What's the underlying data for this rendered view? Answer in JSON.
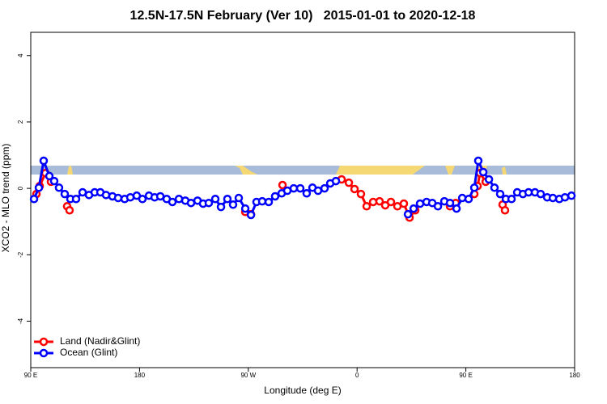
{
  "chart_data": {
    "type": "line",
    "title": "12.5N-17.5N February (Ver 10)   2015-01-01 to 2020-12-18",
    "x_label": "Longitude (deg E)",
    "y_label": "XCO2 - MLO trend (ppm)",
    "xlim": [
      90,
      540
    ],
    "xticks": [
      {
        "value": 90,
        "label": "90 E"
      },
      180,
      {
        "value": 270,
        "label": "90 W"
      },
      {
        "value": 360,
        "label": "0"
      },
      {
        "value": 450,
        "label": "90 E"
      },
      {
        "value": 540,
        "label": "180"
      }
    ],
    "ylim": [
      -5.4,
      4.7
    ],
    "yticks": [
      -4,
      -2,
      0,
      2,
      4
    ],
    "legend_position": "bottom-left",
    "series": [
      {
        "name": "Land (Nadir&Glint)",
        "color": "#ff0000",
        "x": [
          94.7,
          97.4,
          102.1,
          106.7,
          113,
          120.1,
          122.1,
          200,
          267.5,
          272.2,
          285,
          298.3,
          320,
          347.2,
          353.2,
          357.9,
          363.2,
          367.9,
          373.3,
          378.6,
          383.3,
          388.0,
          393.4,
          398.7,
          403.4,
          408.1,
          420,
          436.9,
          441.6,
          450,
          457.0,
          459.7,
          461.7,
          466.4,
          473,
          480.4,
          482.4
        ],
        "values": [
          -0.17,
          0.07,
          0.46,
          0.2,
          null,
          -0.54,
          -0.66,
          null,
          -0.71,
          -0.78,
          null,
          0.1,
          null,
          0.27,
          0.17,
          -0.02,
          -0.17,
          -0.54,
          -0.41,
          -0.39,
          -0.51,
          -0.41,
          -0.54,
          -0.46,
          -0.88,
          -0.66,
          null,
          -0.54,
          -0.44,
          null,
          -0.17,
          0.07,
          0.46,
          0.2,
          null,
          -0.49,
          -0.66
        ]
      },
      {
        "name": "Ocean (Glint)",
        "color": "#0000ff",
        "x": [
          92.7,
          96.7,
          100.7,
          105.4,
          109.4,
          113.4,
          118.1,
          122.8,
          127.5,
          132.9,
          138.2,
          142.9,
          147.6,
          152.3,
          157.6,
          162.3,
          167.7,
          172.4,
          177.7,
          182.4,
          187.8,
          192.5,
          197.2,
          202.5,
          207.2,
          212.6,
          217.9,
          222.6,
          228.0,
          232.6,
          237.3,
          242.7,
          247.4,
          252.7,
          257.4,
          262.1,
          267.5,
          272.2,
          276.8,
          281.5,
          286.9,
          292.2,
          297.6,
          302.3,
          307.6,
          313.0,
          318.3,
          323.1,
          327.7,
          333.1,
          337.8,
          342.5,
          370,
          402.1,
          406.8,
          412.1,
          417.5,
          422.2,
          426.9,
          432.2,
          436.9,
          442.3,
          447.0,
          452.3,
          457.0,
          460.3,
          464.4,
          469.1,
          473.7,
          478.4,
          483.1,
          487.8,
          492.5,
          497.2,
          501.9,
          507.2,
          511.9,
          517.3,
          522.0,
          527.3,
          532.0,
          537.4
        ],
        "values": [
          -0.32,
          0.02,
          0.83,
          0.37,
          0.22,
          0.02,
          -0.17,
          -0.32,
          -0.32,
          -0.12,
          -0.2,
          -0.12,
          -0.12,
          -0.2,
          -0.24,
          -0.29,
          -0.32,
          -0.27,
          -0.22,
          -0.32,
          -0.22,
          -0.27,
          -0.24,
          -0.32,
          -0.41,
          -0.32,
          -0.37,
          -0.44,
          -0.37,
          -0.46,
          -0.44,
          -0.32,
          -0.56,
          -0.32,
          -0.49,
          -0.29,
          -0.61,
          -0.8,
          -0.41,
          -0.39,
          -0.41,
          -0.24,
          -0.15,
          -0.07,
          0,
          0,
          -0.15,
          0.02,
          -0.07,
          0,
          0.15,
          0.22,
          null,
          -0.78,
          -0.61,
          -0.46,
          -0.41,
          -0.44,
          -0.54,
          -0.39,
          -0.44,
          -0.61,
          -0.29,
          -0.32,
          0.02,
          0.83,
          0.49,
          0.27,
          0.02,
          -0.17,
          -0.32,
          -0.32,
          -0.12,
          -0.17,
          -0.12,
          -0.12,
          -0.17,
          -0.27,
          -0.29,
          -0.32,
          -0.27,
          -0.22
        ]
      }
    ]
  }
}
